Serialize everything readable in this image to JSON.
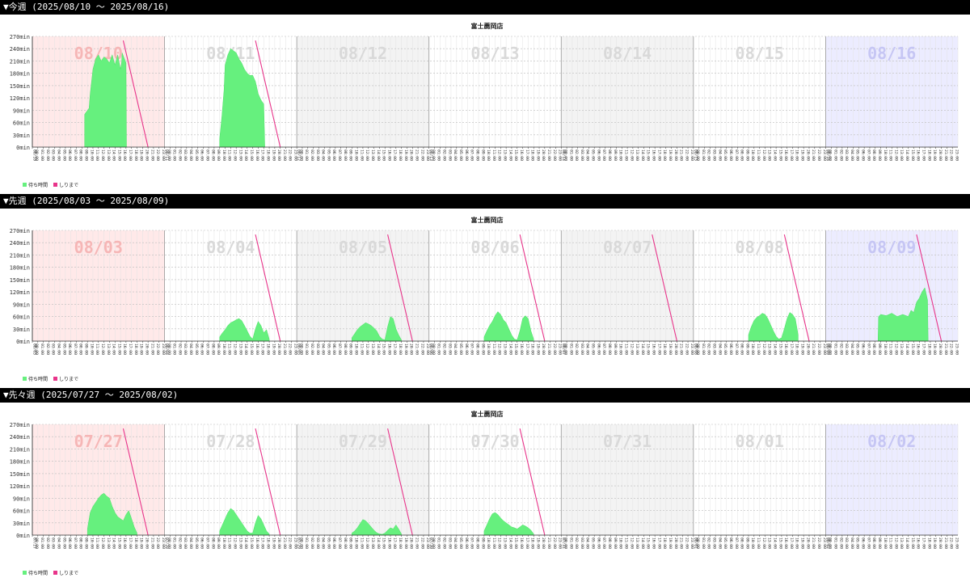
{
  "weeks": [
    {
      "header": "▼今週 (2025/08/10 〜 2025/08/16)",
      "chart_data": {
        "type": "area",
        "title": "富士薦岡店",
        "ylim": [
          0,
          270
        ],
        "y_ticks": [
          "0min",
          "30min",
          "60min",
          "90min",
          "120min",
          "150min",
          "180min",
          "210min",
          "240min",
          "270min"
        ],
        "day_labels": [
          "08/10",
          "08/11",
          "08/12",
          "08/13",
          "08/14",
          "08/15",
          "08/16"
        ],
        "date_codes": [
          "08/10",
          "08/11",
          "08/12",
          "08/13",
          "08/14",
          "08/15",
          "08/16"
        ],
        "hour_labels": [
          "00:00",
          "01:00",
          "02:00",
          "03:00",
          "04:00",
          "05:00",
          "06:00",
          "07:00",
          "08:00",
          "09:00",
          "10:00",
          "11:00",
          "12:00",
          "13:00",
          "14:00",
          "15:00",
          "16:00",
          "17:00",
          "18:00",
          "19:00",
          "20:00",
          "21:00",
          "22:00",
          "23:00"
        ],
        "legend": [
          "待ち時間",
          "しりまで"
        ],
        "colors": {
          "wait": "#66f07e",
          "line": "#e8348a",
          "sun_bg": "#ffe9e9",
          "sat_bg": "#ececff",
          "grid": "#bbbbbb",
          "label_sun": "#f6b6b6",
          "label_sat": "#c6c6f4",
          "label_wk": "#d9d9d9"
        },
        "series": [
          {
            "name": "待ち時間",
            "days": [
              {
                "x": [
                  9.5,
                  10.3,
                  10.5,
                  11,
                  11.5,
                  12,
                  12.5,
                  13,
                  13.5,
                  14,
                  14.5,
                  15,
                  15.5,
                  16,
                  16.2,
                  16.3,
                  17,
                  17.1
                ],
                "y": [
                  80,
                  95,
                  130,
                  190,
                  215,
                  225,
                  210,
                  220,
                  215,
                  205,
                  225,
                  200,
                  225,
                  190,
                  205,
                  230,
                  205,
                  0
                ]
              },
              {
                "x": [
                  10,
                  10.4,
                  10.8,
                  11,
                  11.5,
                  12,
                  12.5,
                  13,
                  13.5,
                  14,
                  14.5,
                  15,
                  15.5,
                  16,
                  16.5,
                  17,
                  17.5,
                  18,
                  18.2
                ],
                "y": [
                  20,
                  75,
                  140,
                  200,
                  225,
                  240,
                  235,
                  230,
                  215,
                  205,
                  190,
                  180,
                  175,
                  175,
                  160,
                  130,
                  115,
                  105,
                  0
                ]
              },
              {
                "x": [],
                "y": []
              },
              {
                "x": [],
                "y": []
              },
              {
                "x": [],
                "y": []
              },
              {
                "x": [],
                "y": []
              },
              {
                "x": [],
                "y": []
              }
            ]
          },
          {
            "name": "しりまで",
            "days": [
              {
                "x": [
                  16.5,
                  21.0
                ],
                "y": [
                  260,
                  0
                ]
              },
              {
                "x": [
                  16.5,
                  21.0
                ],
                "y": [
                  260,
                  0
                ]
              },
              {
                "x": [],
                "y": []
              },
              {
                "x": [],
                "y": []
              },
              {
                "x": [],
                "y": []
              },
              {
                "x": [],
                "y": []
              },
              {
                "x": [],
                "y": []
              }
            ]
          }
        ]
      }
    },
    {
      "header": "▼先週 (2025/08/03 〜 2025/08/09)",
      "chart_data": {
        "type": "area",
        "title": "富士薦岡店",
        "ylim": [
          0,
          270
        ],
        "y_ticks": [
          "0min",
          "30min",
          "60min",
          "90min",
          "120min",
          "150min",
          "180min",
          "210min",
          "240min",
          "270min"
        ],
        "day_labels": [
          "08/03",
          "08/04",
          "08/05",
          "08/06",
          "08/07",
          "08/08",
          "08/09"
        ],
        "date_codes": [
          "08/03",
          "08/04",
          "08/05",
          "08/06",
          "08/07",
          "08/08",
          "08/09"
        ],
        "hour_labels": [
          "00:00",
          "01:00",
          "02:00",
          "03:00",
          "04:00",
          "05:00",
          "06:00",
          "07:00",
          "08:00",
          "09:00",
          "10:00",
          "11:00",
          "12:00",
          "13:00",
          "14:00",
          "15:00",
          "16:00",
          "17:00",
          "18:00",
          "19:00",
          "20:00",
          "21:00",
          "22:00",
          "23:00"
        ],
        "legend": [
          "待ち時間",
          "しりまで"
        ],
        "colors": {
          "wait": "#66f07e",
          "line": "#e8348a",
          "sun_bg": "#ffe9e9",
          "sat_bg": "#ececff",
          "grid": "#bbbbbb",
          "label_sun": "#f6b6b6",
          "label_sat": "#c6c6f4",
          "label_wk": "#d9d9d9"
        },
        "series": [
          {
            "name": "待ち時間",
            "days": [
              {
                "x": [],
                "y": []
              },
              {
                "x": [
                  10,
                  10.5,
                  11,
                  11.5,
                  12,
                  12.5,
                  13,
                  13.5,
                  14,
                  14.5,
                  15,
                  15.5,
                  16,
                  16.5,
                  17,
                  17.5,
                  18,
                  18.5,
                  19
                ],
                "y": [
                  10,
                  20,
                  28,
                  38,
                  45,
                  48,
                  52,
                  55,
                  50,
                  38,
                  25,
                  12,
                  5,
                  30,
                  48,
                  38,
                  20,
                  28,
                  5
                ]
              },
              {
                "x": [
                  10,
                  10.5,
                  11,
                  11.5,
                  12,
                  12.5,
                  13,
                  13.5,
                  14,
                  14.5,
                  15,
                  15.5,
                  16,
                  16.5,
                  17,
                  17.5,
                  18,
                  18.5,
                  19
                ],
                "y": [
                  8,
                  18,
                  28,
                  35,
                  40,
                  45,
                  42,
                  38,
                  32,
                  25,
                  12,
                  5,
                  3,
                  35,
                  60,
                  55,
                  30,
                  15,
                  3
                ]
              },
              {
                "x": [
                  10,
                  10.5,
                  11,
                  11.5,
                  12,
                  12.5,
                  13,
                  13.5,
                  14,
                  14.5,
                  15,
                  15.5,
                  16,
                  16.5,
                  17,
                  17.5,
                  18,
                  18.5,
                  19
                ],
                "y": [
                  10,
                  25,
                  38,
                  48,
                  62,
                  72,
                  65,
                  52,
                  45,
                  30,
                  15,
                  5,
                  3,
                  25,
                  55,
                  62,
                  55,
                  25,
                  5
                ]
              },
              {
                "x": [],
                "y": []
              },
              {
                "x": [
                  10,
                  10.5,
                  11,
                  11.5,
                  12,
                  12.5,
                  13,
                  13.5,
                  14,
                  14.5,
                  15,
                  15.5,
                  16,
                  16.5,
                  17,
                  17.5,
                  18,
                  18.5,
                  19
                ],
                "y": [
                  15,
                  35,
                  50,
                  58,
                  62,
                  68,
                  65,
                  55,
                  40,
                  25,
                  12,
                  5,
                  8,
                  30,
                  55,
                  70,
                  65,
                  55,
                  15
                ]
              },
              {
                "x": [
                  9.5,
                  9.6,
                  10,
                  11,
                  12,
                  13,
                  14,
                  15,
                  15.5,
                  16,
                  16.5,
                  17,
                  17.5,
                  18,
                  18.5,
                  18.6
                ],
                "y": [
                  0,
                  60,
                  65,
                  62,
                  68,
                  60,
                  65,
                  60,
                  75,
                  70,
                  95,
                  105,
                  120,
                  130,
                  100,
                  0
                ]
              }
            ]
          },
          {
            "name": "しりまで",
            "days": [
              {
                "x": [],
                "y": []
              },
              {
                "x": [
                  16.5,
                  21.0
                ],
                "y": [
                  260,
                  0
                ]
              },
              {
                "x": [
                  16.5,
                  21.0
                ],
                "y": [
                  260,
                  0
                ]
              },
              {
                "x": [
                  16.5,
                  21.0
                ],
                "y": [
                  260,
                  0
                ]
              },
              {
                "x": [
                  16.5,
                  21.0
                ],
                "y": [
                  260,
                  0
                ]
              },
              {
                "x": [
                  16.5,
                  21.0
                ],
                "y": [
                  260,
                  0
                ]
              },
              {
                "x": [
                  16.5,
                  21.0
                ],
                "y": [
                  260,
                  0
                ]
              }
            ]
          }
        ]
      }
    },
    {
      "header": "▼先々週 (2025/07/27 〜 2025/08/02)",
      "chart_data": {
        "type": "area",
        "title": "富士薦岡店",
        "ylim": [
          0,
          270
        ],
        "y_ticks": [
          "0min",
          "30min",
          "60min",
          "90min",
          "120min",
          "150min",
          "180min",
          "210min",
          "240min",
          "270min"
        ],
        "day_labels": [
          "07/27",
          "07/28",
          "07/29",
          "07/30",
          "07/31",
          "08/01",
          "08/02"
        ],
        "date_codes": [
          "07/27",
          "07/28",
          "07/29",
          "07/30",
          "07/31",
          "08/01",
          "08/02"
        ],
        "hour_labels": [
          "00:00",
          "01:00",
          "02:00",
          "03:00",
          "04:00",
          "05:00",
          "06:00",
          "07:00",
          "08:00",
          "09:00",
          "10:00",
          "11:00",
          "12:00",
          "13:00",
          "14:00",
          "15:00",
          "16:00",
          "17:00",
          "18:00",
          "19:00",
          "20:00",
          "21:00",
          "22:00",
          "23:00"
        ],
        "legend": [
          "待ち時間",
          "しりまで"
        ],
        "colors": {
          "wait": "#66f07e",
          "line": "#e8348a",
          "sun_bg": "#ffe9e9",
          "sat_bg": "#ececff",
          "grid": "#bbbbbb",
          "label_sun": "#f6b6b6",
          "label_sat": "#c6c6f4",
          "label_wk": "#d9d9d9"
        },
        "series": [
          {
            "name": "待ち時間",
            "days": [
              {
                "x": [
                  10,
                  10.5,
                  11,
                  11.5,
                  12,
                  12.5,
                  13,
                  13.5,
                  14,
                  14.5,
                  15,
                  15.5,
                  16,
                  16.5,
                  17,
                  17.5,
                  18,
                  18.5,
                  19
                ],
                "y": [
                  15,
                  55,
                  70,
                  80,
                  90,
                  98,
                  102,
                  95,
                  90,
                  70,
                  55,
                  45,
                  40,
                  35,
                  50,
                  60,
                  40,
                  20,
                  5
                ]
              },
              {
                "x": [
                  10,
                  10.5,
                  11,
                  11.5,
                  12,
                  12.5,
                  13,
                  13.5,
                  14,
                  14.5,
                  15,
                  15.5,
                  16,
                  16.5,
                  17,
                  17.5,
                  18,
                  18.5,
                  19
                ],
                "y": [
                  10,
                  25,
                  40,
                  55,
                  65,
                  60,
                  50,
                  40,
                  30,
                  20,
                  10,
                  5,
                  5,
                  30,
                  48,
                  40,
                  25,
                  10,
                  3
                ]
              },
              {
                "x": [
                  10,
                  10.5,
                  11,
                  11.5,
                  12,
                  12.5,
                  13,
                  13.5,
                  14,
                  14.5,
                  15,
                  15.5,
                  16,
                  16.5,
                  17,
                  17.5,
                  18,
                  18.5,
                  19
                ],
                "y": [
                  5,
                  10,
                  18,
                  28,
                  38,
                  35,
                  28,
                  20,
                  12,
                  6,
                  3,
                  2,
                  5,
                  12,
                  18,
                  15,
                  25,
                  15,
                  3
                ]
              },
              {
                "x": [
                  10,
                  10.5,
                  11,
                  11.5,
                  12,
                  12.5,
                  13,
                  13.5,
                  14,
                  14.5,
                  15,
                  15.5,
                  16,
                  16.5,
                  17,
                  17.5,
                  18,
                  18.5,
                  19
                ],
                "y": [
                  10,
                  25,
                  40,
                  52,
                  55,
                  50,
                  42,
                  35,
                  30,
                  25,
                  20,
                  18,
                  15,
                  20,
                  25,
                  22,
                  18,
                  12,
                  3
                ]
              },
              {
                "x": [],
                "y": []
              },
              {
                "x": [],
                "y": []
              },
              {
                "x": [],
                "y": []
              }
            ]
          },
          {
            "name": "しりまで",
            "days": [
              {
                "x": [
                  16.5,
                  21.0
                ],
                "y": [
                  260,
                  0
                ]
              },
              {
                "x": [
                  16.5,
                  21.0
                ],
                "y": [
                  260,
                  0
                ]
              },
              {
                "x": [
                  16.5,
                  21.0
                ],
                "y": [
                  260,
                  0
                ]
              },
              {
                "x": [
                  16.5,
                  21.0
                ],
                "y": [
                  260,
                  0
                ]
              },
              {
                "x": [],
                "y": []
              },
              {
                "x": [],
                "y": []
              },
              {
                "x": [],
                "y": []
              }
            ]
          }
        ]
      }
    }
  ]
}
